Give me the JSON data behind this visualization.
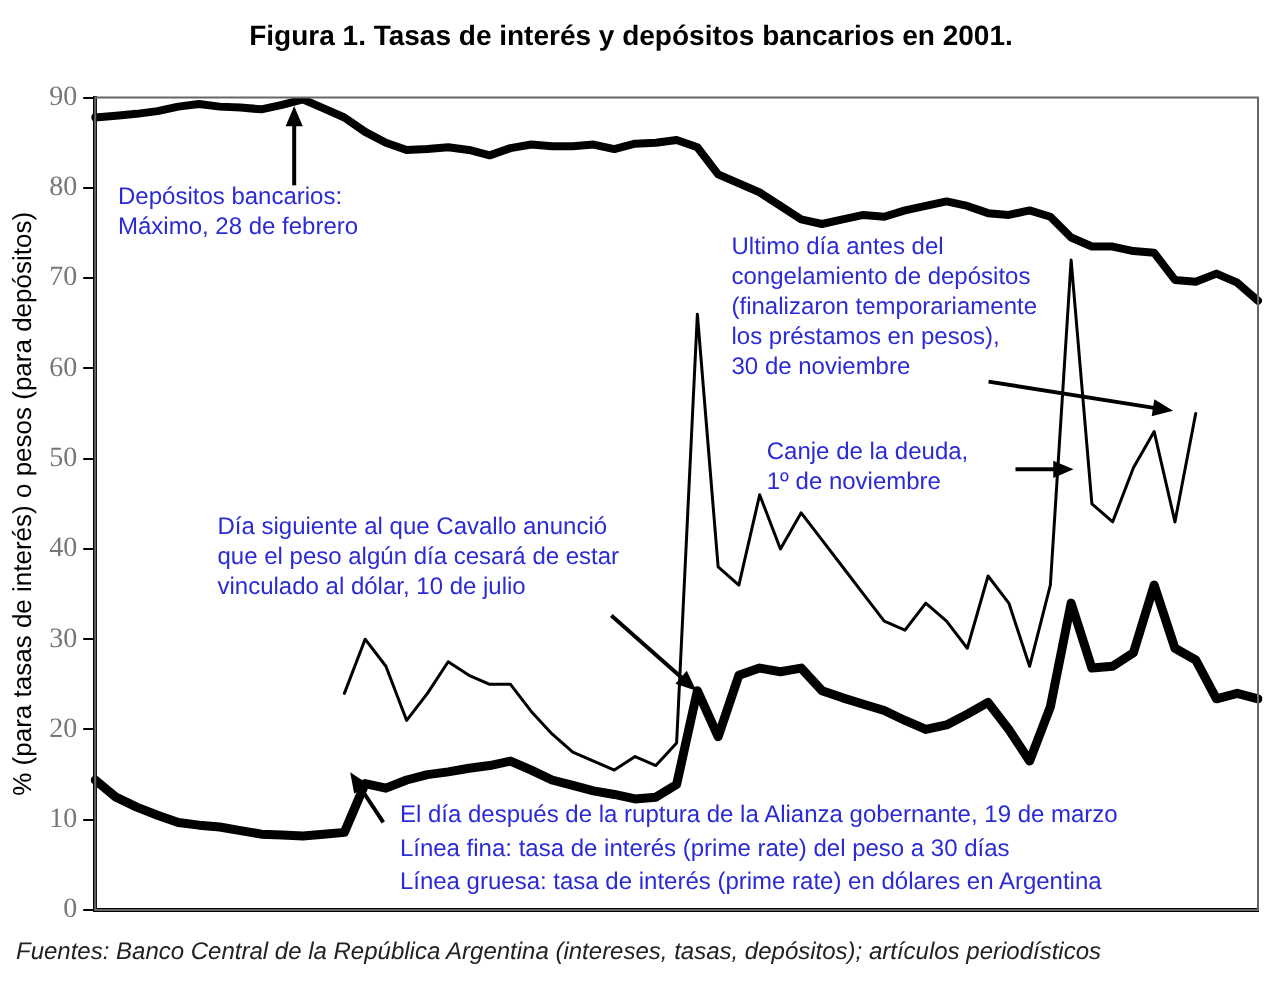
{
  "chart_data": {
    "type": "line",
    "title": "Figura 1. Tasas de interés y depósitos bancarios en 2001.",
    "ylabel": "% (para tasas de interés) o pesos (para depósitos)",
    "annotations": [
      "Depósitos bancarios:\nMáximo, 28 de febrero",
      "Ultimo día antes del\ncongelamiento de depósitos\n(finalizaron temporariamente\nlos préstamos en pesos),\n30 de noviembre",
      "Canje de la deuda,\n1º de noviembre",
      "Día siguiente al que Cavallo anunció\nque el peso algún día cesará de estar\nvinculado al dólar, 10 de julio",
      "El día después de la ruptura de la Alianza gobernante, 19 de marzo",
      "Línea fina: tasa de interés (prime rate) del peso a 30 días",
      "Línea gruesa: tasa de interés (prime rate) en dólares en Argentina",
      "Fuentes: Banco Central de la República Argentina (intereses, tasas, depósitos); artículos periodísticos"
    ],
    "categories": [
      null,
      null,
      null,
      null,
      null,
      null,
      null,
      null,
      null,
      null,
      null,
      null,
      null,
      null,
      null,
      null,
      null,
      null,
      null,
      null,
      null,
      null,
      null,
      null,
      null,
      null,
      null,
      null,
      null,
      null,
      null,
      null,
      null,
      null,
      null,
      null,
      null,
      null,
      null,
      null,
      null,
      null,
      null,
      null,
      null,
      null,
      null,
      null,
      null,
      null,
      null,
      null,
      null,
      null,
      null,
      null,
      null
    ],
    "series": [
      {
        "color": "#000000",
        "values": [
          87.8,
          88,
          88.2,
          88.5,
          89,
          89.3,
          89,
          88.9,
          88.7,
          89.2,
          89.8,
          88.8,
          87.8,
          86.2,
          85,
          84.2,
          84.3,
          84.5,
          84.2,
          83.6,
          84.4,
          84.8,
          84.6,
          84.6,
          84.8,
          84.3,
          84.9,
          85,
          85.3,
          84.5,
          81.5,
          80.5,
          79.5,
          78,
          76.5,
          76,
          76.5,
          77,
          76.8,
          77.5,
          78,
          78.5,
          78,
          77.2,
          77,
          77.5,
          76.8,
          74.5,
          73.5,
          73.5,
          73,
          72.8,
          69.8,
          69.6,
          70.5,
          69.5,
          67.5
        ]
      },
      {
        "color": "#000000",
        "values": [
          null,
          null,
          null,
          null,
          null,
          null,
          null,
          null,
          null,
          null,
          null,
          null,
          24,
          30,
          27,
          21,
          24,
          27.5,
          26,
          25,
          25,
          22,
          19.5,
          17.5,
          16.5,
          15.5,
          17,
          16,
          18.5,
          66,
          38,
          36,
          46,
          40,
          44,
          41,
          38,
          35,
          32,
          31,
          34,
          32,
          29,
          37,
          34,
          27,
          36,
          72,
          45,
          43,
          49,
          53,
          43,
          55,
          null,
          null,
          null
        ]
      },
      {
        "color": "#000000",
        "values": [
          14.4,
          12.5,
          11.4,
          10.5,
          9.7,
          9.4,
          9.2,
          8.8,
          8.4,
          8.3,
          8.2,
          8.4,
          8.6,
          14,
          13.5,
          14.4,
          15,
          15.3,
          15.7,
          16,
          16.5,
          15.5,
          14.4,
          13.8,
          13.2,
          12.8,
          12.3,
          12.5,
          13.9,
          24.3,
          19.2,
          26,
          26.8,
          26.4,
          26.8,
          24.3,
          23.5,
          22.8,
          22.1,
          21,
          20,
          20.5,
          21.7,
          23,
          20,
          16.5,
          22.5,
          34,
          26.8,
          27,
          28.5,
          36,
          29,
          27.7,
          23.4,
          24,
          23.4
        ]
      }
    ],
    "ylim": [
      0,
      90
    ],
    "yticks": [
      0,
      10,
      20,
      30,
      40,
      50,
      60,
      70,
      80,
      90
    ],
    "grid": false,
    "tick_labels": "y",
    "marker": "none",
    "line_style": "solid"
  }
}
